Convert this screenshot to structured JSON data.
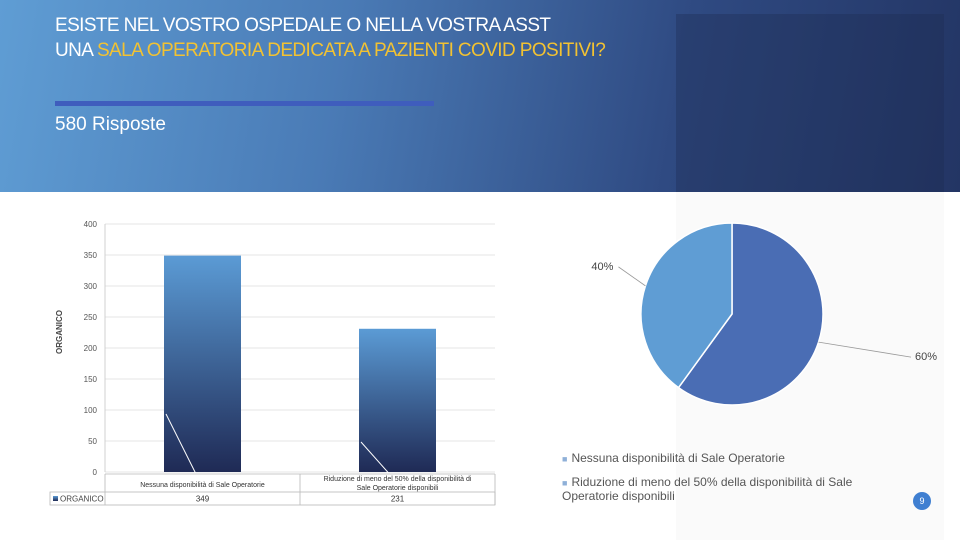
{
  "header": {
    "title_line1": "ESISTE NEL VOSTRO OSPEDALE O NELLA VOSTRA  ASST",
    "title_line2_prefix": "UNA ",
    "title_line2_highlight": "SALA OPERATORIA DEDICATA A PAZIENTI COVID POSITIVI?",
    "responses": "580 Risposte"
  },
  "colors": {
    "accent": "#f2c232",
    "bar_top": "#5b9bd5",
    "bar_bottom": "#1f2a55",
    "pie_a": "#4a6db4",
    "pie_b": "#5f9dd4"
  },
  "chart_data": [
    {
      "type": "bar",
      "categories": [
        "Nessuna disponibilità di Sale Operatorie",
        "Riduzione di meno del 50% della disponibilità di Sale Operatorie disponibili"
      ],
      "series": [
        {
          "name": "ORGANICO",
          "values": [
            349,
            231
          ]
        }
      ],
      "value_labels": [
        "349",
        "231"
      ],
      "ylabel": "ORGANICO",
      "ylim": [
        0,
        400
      ],
      "yticks": [
        "0",
        "50",
        "100",
        "150",
        "200",
        "250",
        "300",
        "350",
        "400"
      ],
      "data_table": true,
      "legend_key": "ORGANICO"
    },
    {
      "type": "pie",
      "labels": [
        "Nessuna disponibilità di Sale Operatorie",
        "Riduzione di meno del 50% della disponibilità di Sale Operatorie disponibili"
      ],
      "values": [
        60,
        40
      ],
      "slice_labels": [
        "60%",
        "40%"
      ],
      "legend_position": "bottom"
    }
  ],
  "page_number": "9"
}
